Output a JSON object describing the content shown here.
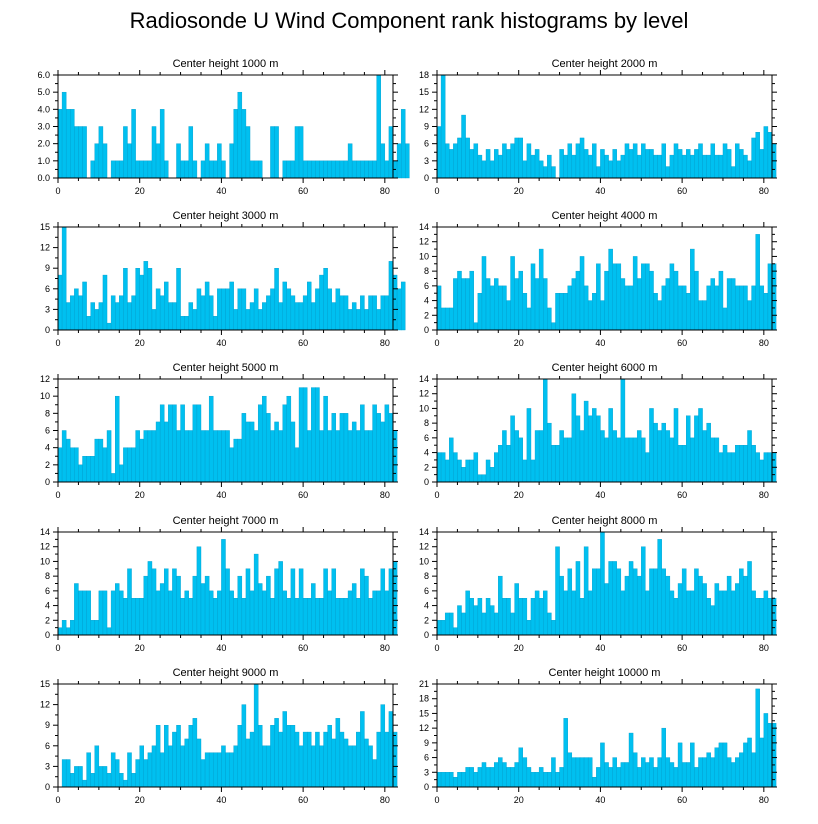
{
  "title": "Radiosonde U Wind Component rank histograms by level",
  "colors": {
    "bar": "#00c0f0",
    "bar_edge": "#009dcc",
    "axis": "#000000"
  },
  "chart_data": [
    {
      "type": "bar",
      "title": "Center height 1000 m",
      "xlim": [
        0,
        82
      ],
      "ylim": [
        0,
        6
      ],
      "xticks": [
        0,
        20,
        40,
        60,
        80
      ],
      "yticks": [
        0,
        1,
        2,
        3,
        4,
        5,
        6
      ],
      "ytick_labels": [
        "0.0",
        "1.0",
        "2.0",
        "3.0",
        "4.0",
        "5.0",
        "6.0"
      ],
      "x_start": 0,
      "values": [
        4,
        5,
        4,
        4,
        3,
        3,
        3,
        0,
        1,
        2,
        3,
        2,
        0,
        1,
        1,
        1,
        3,
        2,
        4,
        1,
        1,
        1,
        1,
        3,
        2,
        4,
        1,
        0,
        0,
        2,
        1,
        1,
        3,
        1,
        0,
        1,
        2,
        1,
        1,
        2,
        1,
        0,
        2,
        4,
        5,
        4,
        3,
        1,
        1,
        1,
        0,
        0,
        3,
        3,
        0,
        1,
        1,
        1,
        3,
        3,
        1,
        1,
        1,
        1,
        1,
        1,
        1,
        1,
        1,
        1,
        1,
        2,
        1,
        1,
        1,
        1,
        1,
        1,
        6,
        2,
        1,
        3,
        1,
        2,
        4,
        2
      ]
    },
    {
      "type": "bar",
      "title": "Center height 2000 m",
      "xlim": [
        0,
        82
      ],
      "ylim": [
        0,
        18
      ],
      "xticks": [
        0,
        20,
        40,
        60,
        80
      ],
      "yticks": [
        0,
        3,
        6,
        9,
        12,
        15,
        18
      ],
      "ytick_labels": [
        "0",
        "3",
        "6",
        "9",
        "12",
        "15",
        "18"
      ],
      "x_start": 0,
      "values": [
        9,
        18,
        6,
        5,
        6,
        7,
        11,
        7,
        5,
        6,
        4,
        3,
        5,
        3,
        5,
        4,
        6,
        5,
        6,
        7,
        7,
        3,
        6,
        4,
        5,
        3,
        2,
        4,
        2,
        0,
        5,
        4,
        6,
        4,
        6,
        7,
        5,
        4,
        6,
        2,
        5,
        4,
        3,
        5,
        3,
        4,
        6,
        5,
        6,
        4,
        6,
        5,
        5,
        4,
        4,
        6,
        2,
        4,
        6,
        5,
        4,
        5,
        4,
        5,
        6,
        4,
        4,
        6,
        4,
        4,
        6,
        5,
        2,
        6,
        5,
        4,
        3,
        7,
        8,
        5,
        9,
        8,
        6
      ]
    },
    {
      "type": "bar",
      "title": "Center height 3000 m",
      "xlim": [
        0,
        82
      ],
      "ylim": [
        0,
        15
      ],
      "xticks": [
        0,
        20,
        40,
        60,
        80
      ],
      "yticks": [
        0,
        3,
        6,
        9,
        12,
        15
      ],
      "ytick_labels": [
        "0",
        "3",
        "6",
        "9",
        "12",
        "15"
      ],
      "x_start": 0,
      "values": [
        8,
        15,
        4,
        5,
        6,
        5,
        7,
        2,
        4,
        3,
        4,
        8,
        1,
        5,
        4,
        5,
        9,
        4,
        5,
        9,
        8,
        10,
        9,
        3,
        6,
        5,
        7,
        4,
        4,
        9,
        2,
        2,
        4,
        3,
        6,
        5,
        7,
        5,
        2,
        6,
        6,
        6,
        7,
        3,
        6,
        6,
        3,
        4,
        6,
        3,
        4,
        5,
        6,
        9,
        4,
        7,
        6,
        5,
        4,
        4,
        5,
        7,
        4,
        6,
        8,
        9,
        6,
        4,
        6,
        5,
        5,
        3,
        4,
        3,
        5,
        3,
        5,
        5,
        3,
        5,
        5,
        10,
        8,
        6,
        7
      ]
    },
    {
      "type": "bar",
      "title": "Center height 4000 m",
      "xlim": [
        0,
        82
      ],
      "ylim": [
        0,
        14
      ],
      "xticks": [
        0,
        20,
        40,
        60,
        80
      ],
      "yticks": [
        0,
        2,
        4,
        6,
        8,
        10,
        12,
        14
      ],
      "ytick_labels": [
        "0",
        "2",
        "4",
        "6",
        "8",
        "10",
        "12",
        "14"
      ],
      "x_start": 0,
      "values": [
        6,
        3,
        3,
        3,
        7,
        8,
        7,
        7,
        8,
        1,
        5,
        10,
        7,
        6,
        7,
        6,
        6,
        4,
        10,
        7,
        8,
        5,
        3,
        9,
        7,
        11,
        7,
        3,
        1,
        5,
        5,
        5,
        6,
        7,
        8,
        10,
        6,
        4,
        5,
        9,
        4,
        8,
        11,
        9,
        9,
        7,
        6,
        6,
        10,
        7,
        9,
        9,
        8,
        5,
        4,
        6,
        7,
        9,
        8,
        6,
        6,
        5,
        11,
        8,
        4,
        4,
        6,
        7,
        6,
        8,
        3,
        7,
        7,
        6,
        6,
        6,
        4,
        6,
        13,
        6,
        5,
        9,
        9
      ]
    },
    {
      "type": "bar",
      "title": "Center height 5000 m",
      "xlim": [
        0,
        82
      ],
      "ylim": [
        0,
        12
      ],
      "xticks": [
        0,
        20,
        40,
        60,
        80
      ],
      "yticks": [
        0,
        2,
        4,
        6,
        8,
        10,
        12
      ],
      "ytick_labels": [
        "0",
        "2",
        "4",
        "6",
        "8",
        "10",
        "12"
      ],
      "x_start": 0,
      "values": [
        4,
        6,
        5,
        4,
        4,
        2,
        3,
        3,
        3,
        5,
        5,
        4,
        6,
        1,
        10,
        2,
        4,
        4,
        4,
        6,
        5,
        6,
        6,
        6,
        7,
        9,
        7,
        9,
        9,
        6,
        9,
        6,
        6,
        9,
        9,
        6,
        6,
        10,
        6,
        6,
        6,
        6,
        4,
        5,
        5,
        8,
        7,
        7,
        6,
        9,
        10,
        8,
        6,
        7,
        6,
        9,
        10,
        7,
        4,
        11,
        11,
        6,
        11,
        11,
        6,
        10,
        6,
        8,
        6,
        8,
        8,
        6,
        7,
        6,
        9,
        6,
        6,
        9,
        8,
        7,
        9,
        8,
        6
      ]
    },
    {
      "type": "bar",
      "title": "Center height 6000 m",
      "xlim": [
        0,
        82
      ],
      "ylim": [
        0,
        14
      ],
      "xticks": [
        0,
        20,
        40,
        60,
        80
      ],
      "yticks": [
        0,
        2,
        4,
        6,
        8,
        10,
        12,
        14
      ],
      "ytick_labels": [
        "0",
        "2",
        "4",
        "6",
        "8",
        "10",
        "12",
        "14"
      ],
      "x_start": 0,
      "values": [
        4,
        4,
        3,
        6,
        4,
        3,
        2,
        3,
        3,
        4,
        1,
        1,
        3,
        2,
        4,
        5,
        7,
        5,
        9,
        7,
        6,
        3,
        10,
        3,
        7,
        7,
        14,
        8,
        5,
        5,
        7,
        6,
        6,
        12,
        9,
        7,
        11,
        9,
        10,
        9,
        7,
        6,
        10,
        7,
        6,
        14,
        6,
        6,
        6,
        7,
        6,
        4,
        10,
        8,
        7,
        8,
        7,
        6,
        10,
        5,
        5,
        9,
        6,
        9,
        10,
        7,
        8,
        6,
        6,
        4,
        5,
        4,
        4,
        5,
        5,
        5,
        7,
        5,
        4,
        3,
        4,
        4,
        4
      ]
    },
    {
      "type": "bar",
      "title": "Center height 7000 m",
      "xlim": [
        0,
        82
      ],
      "ylim": [
        0,
        14
      ],
      "xticks": [
        0,
        20,
        40,
        60,
        80
      ],
      "yticks": [
        0,
        2,
        4,
        6,
        8,
        10,
        12,
        14
      ],
      "ytick_labels": [
        "0",
        "2",
        "4",
        "6",
        "8",
        "10",
        "12",
        "14"
      ],
      "x_start": 0,
      "values": [
        1,
        2,
        1,
        2,
        7,
        6,
        6,
        6,
        2,
        2,
        6,
        6,
        1,
        6,
        7,
        6,
        5,
        9,
        5,
        5,
        5,
        8,
        10,
        9,
        6,
        7,
        9,
        6,
        9,
        8,
        5,
        6,
        5,
        8,
        12,
        7,
        8,
        6,
        5,
        6,
        13,
        9,
        6,
        5,
        8,
        5,
        9,
        6,
        11,
        7,
        6,
        8,
        5,
        9,
        10,
        6,
        5,
        9,
        5,
        9,
        5,
        5,
        7,
        5,
        5,
        9,
        6,
        9,
        5,
        5,
        5,
        6,
        7,
        5,
        9,
        8,
        5,
        6,
        6,
        9,
        6,
        9,
        10
      ]
    },
    {
      "type": "bar",
      "title": "Center height 8000 m",
      "xlim": [
        0,
        82
      ],
      "ylim": [
        0,
        14
      ],
      "xticks": [
        0,
        20,
        40,
        60,
        80
      ],
      "yticks": [
        0,
        2,
        4,
        6,
        8,
        10,
        12,
        14
      ],
      "ytick_labels": [
        "0",
        "2",
        "4",
        "6",
        "8",
        "10",
        "12",
        "14"
      ],
      "x_start": 0,
      "values": [
        2,
        2,
        3,
        3,
        1,
        4,
        3,
        6,
        5,
        4,
        5,
        3,
        5,
        4,
        3,
        8,
        5,
        5,
        3,
        7,
        5,
        5,
        2,
        5,
        6,
        5,
        6,
        3,
        2,
        12,
        8,
        6,
        9,
        6,
        10,
        5,
        12,
        6,
        9,
        9,
        14,
        7,
        10,
        10,
        9,
        6,
        8,
        10,
        9,
        8,
        12,
        6,
        9,
        9,
        13,
        9,
        8,
        6,
        5,
        7,
        9,
        6,
        6,
        9,
        8,
        7,
        5,
        4,
        7,
        6,
        6,
        8,
        6,
        7,
        9,
        8,
        10,
        6,
        5,
        5,
        6,
        5,
        5
      ]
    },
    {
      "type": "bar",
      "title": "Center height 9000 m",
      "xlim": [
        0,
        82
      ],
      "ylim": [
        0,
        15
      ],
      "xticks": [
        0,
        20,
        40,
        60,
        80
      ],
      "yticks": [
        0,
        3,
        6,
        9,
        12,
        15
      ],
      "ytick_labels": [
        "0",
        "3",
        "6",
        "9",
        "12",
        "15"
      ],
      "x_start": 0,
      "values": [
        0,
        4,
        4,
        2,
        3,
        3,
        1,
        5,
        2,
        6,
        3,
        3,
        2,
        5,
        4,
        2,
        1,
        5,
        2,
        4,
        6,
        4,
        5,
        6,
        9,
        5,
        9,
        6,
        8,
        9,
        6,
        7,
        9,
        10,
        7,
        4,
        5,
        5,
        5,
        5,
        6,
        5,
        5,
        6,
        9,
        12,
        7,
        8,
        15,
        9,
        6,
        6,
        9,
        10,
        8,
        11,
        9,
        9,
        8,
        6,
        8,
        8,
        6,
        8,
        6,
        8,
        9,
        7,
        10,
        8,
        7,
        6,
        6,
        8,
        11,
        7,
        6,
        4,
        8,
        12,
        8,
        11,
        8
      ]
    },
    {
      "type": "bar",
      "title": "Center height 10000 m",
      "xlim": [
        0,
        82
      ],
      "ylim": [
        0,
        21
      ],
      "xticks": [
        0,
        20,
        40,
        60,
        80
      ],
      "yticks": [
        0,
        3,
        6,
        9,
        12,
        15,
        18,
        21
      ],
      "ytick_labels": [
        "0",
        "3",
        "6",
        "9",
        "12",
        "15",
        "18",
        "21"
      ],
      "x_start": 0,
      "values": [
        3,
        3,
        3,
        3,
        2,
        3,
        3,
        4,
        4,
        3,
        4,
        5,
        4,
        4,
        5,
        6,
        5,
        4,
        4,
        5,
        8,
        6,
        4,
        3,
        3,
        4,
        3,
        3,
        6,
        3,
        4,
        14,
        7,
        6,
        6,
        6,
        6,
        6,
        2,
        4,
        9,
        5,
        4,
        6,
        4,
        5,
        5,
        11,
        7,
        4,
        6,
        5,
        6,
        4,
        6,
        12,
        6,
        5,
        4,
        9,
        5,
        5,
        9,
        4,
        6,
        6,
        7,
        6,
        8,
        9,
        9,
        6,
        5,
        6,
        7,
        9,
        10,
        7,
        20,
        10,
        15,
        13,
        13
      ]
    }
  ]
}
